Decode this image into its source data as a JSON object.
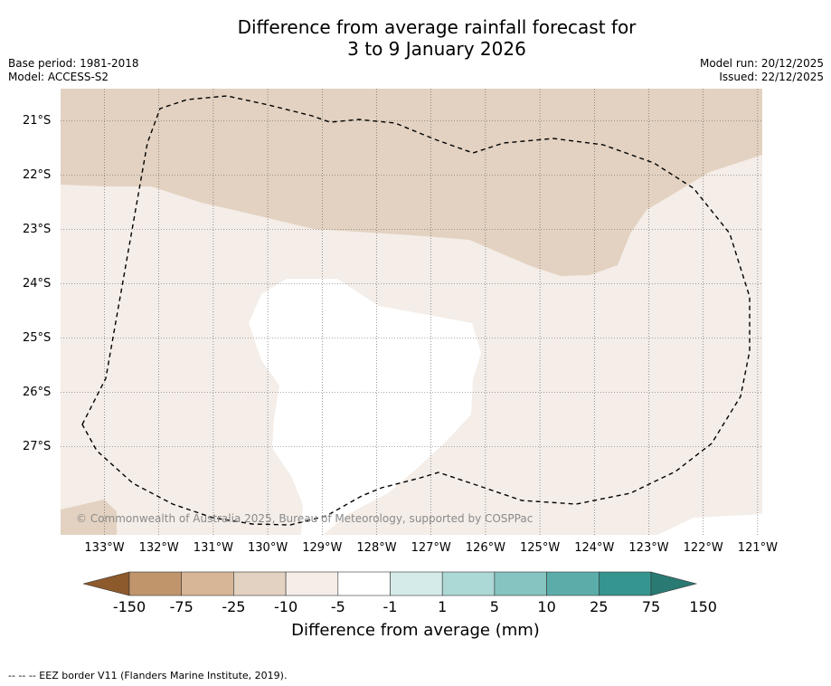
{
  "title": {
    "line1": "Difference from average rainfall forecast for",
    "line2": "3 to 9 January 2026"
  },
  "meta_left": {
    "base_period": "Base period: 1981-2018",
    "model": "Model: ACCESS-S2"
  },
  "meta_right": {
    "model_run": "Model run: 20/12/2025",
    "issued": "Issued: 22/12/2025"
  },
  "lat_labels": [
    "21°S",
    "22°S",
    "23°S",
    "24°S",
    "25°S",
    "26°S",
    "27°S"
  ],
  "lon_labels": [
    "133°W",
    "132°W",
    "131°W",
    "130°W",
    "129°W",
    "128°W",
    "127°W",
    "126°W",
    "125°W",
    "124°W",
    "123°W",
    "122°W",
    "121°W"
  ],
  "map": {
    "lon_range": [
      133.8,
      120.9
    ],
    "lat_range": [
      20.6,
      28.8
    ],
    "copyright": "© Commonwealth of Australia 2025, Bureau of Meteorology, supported by COSPPac",
    "fill_colors": {
      "dry_moderate": "#e3d2c1",
      "dry_slight": "#f4ede8",
      "near_average": "#ffffff"
    }
  },
  "colorbar": {
    "ticks": [
      "-150",
      "-75",
      "-25",
      "-10",
      "-5",
      "-1",
      "1",
      "5",
      "10",
      "25",
      "75",
      "150"
    ],
    "colors": [
      "#a9733e",
      "#c1956b",
      "#d6b696",
      "#e3d2c1",
      "#f4ede8",
      "#ffffff",
      "#d5ebe9",
      "#acd8d6",
      "#85c4c1",
      "#5badaa",
      "#35958f"
    ],
    "low_arrow_color": "#8d5a2c",
    "high_arrow_color": "#2a7a74",
    "label": "Difference from average (mm)"
  },
  "footnote": "--  --  -- EEZ border V11 (Flanders Marine Institute, 2019)."
}
